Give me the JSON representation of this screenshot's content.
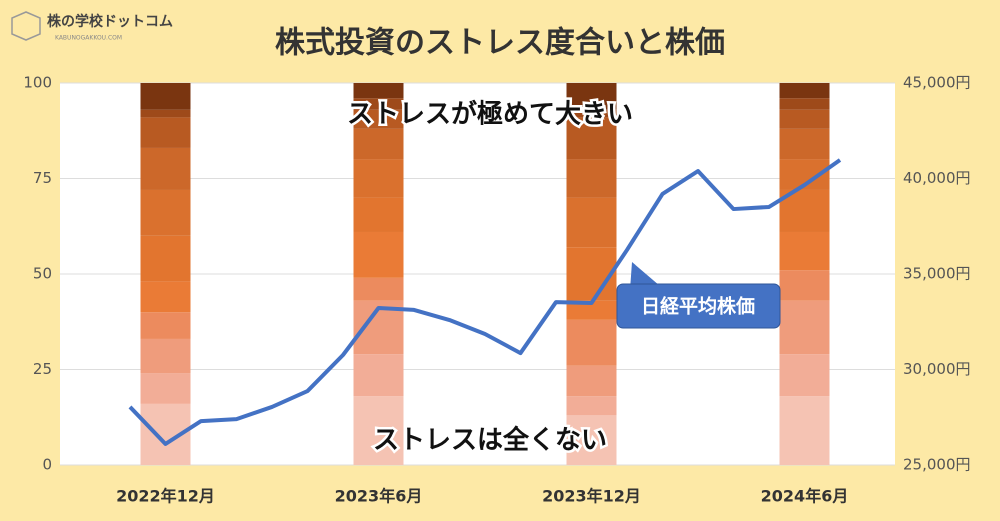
{
  "logo": {
    "name": "株の学校ドットコム",
    "url": "KABUNOGAKKOU.COM"
  },
  "chart_data": {
    "type": "bar_line",
    "title": "株式投資のストレス度合いと株価",
    "categories": [
      null,
      "2022年12月",
      null,
      null,
      null,
      null,
      null,
      "2023年6月",
      null,
      null,
      null,
      null,
      null,
      "2023年12月",
      null,
      null,
      null,
      null,
      null,
      "2024年6月",
      null
    ],
    "ylim": [
      0,
      100
    ],
    "yticks": [
      0,
      25,
      50,
      75,
      100
    ],
    "y2lim": [
      25000,
      45000
    ],
    "y2ticks": [
      {
        "value": 25000,
        "label": "25,000円"
      },
      {
        "value": 30000,
        "label": "30,000円"
      },
      {
        "value": 35000,
        "label": "35,000円"
      },
      {
        "value": 40000,
        "label": "40,000円"
      },
      {
        "value": 45000,
        "label": "45,000円"
      }
    ],
    "grid": true,
    "stack_series": [
      {
        "color": "#f5c3b3",
        "values": [
          null,
          16,
          null,
          null,
          null,
          null,
          null,
          18,
          null,
          null,
          null,
          null,
          null,
          13,
          null,
          null,
          null,
          null,
          null,
          18,
          null
        ]
      },
      {
        "color": "#f2ad97",
        "values": [
          null,
          8,
          null,
          null,
          null,
          null,
          null,
          11,
          null,
          null,
          null,
          null,
          null,
          5,
          null,
          null,
          null,
          null,
          null,
          11,
          null
        ]
      },
      {
        "color": "#ef9c7c",
        "values": [
          null,
          9,
          null,
          null,
          null,
          null,
          null,
          14,
          null,
          null,
          null,
          null,
          null,
          8,
          null,
          null,
          null,
          null,
          null,
          14,
          null
        ]
      },
      {
        "color": "#ec8b5e",
        "values": [
          null,
          7,
          null,
          null,
          null,
          null,
          null,
          6,
          null,
          null,
          null,
          null,
          null,
          12,
          null,
          null,
          null,
          null,
          null,
          8,
          null
        ]
      },
      {
        "color": "#ea7b36",
        "values": [
          null,
          8,
          null,
          null,
          null,
          null,
          null,
          12,
          null,
          null,
          null,
          null,
          null,
          5,
          null,
          null,
          null,
          null,
          null,
          10,
          null
        ]
      },
      {
        "color": "#e2752f",
        "values": [
          null,
          12,
          null,
          null,
          null,
          null,
          null,
          9,
          null,
          null,
          null,
          null,
          null,
          14,
          null,
          null,
          null,
          null,
          null,
          11,
          null
        ]
      },
      {
        "color": "#da712e",
        "values": [
          null,
          12,
          null,
          null,
          null,
          null,
          null,
          10,
          null,
          null,
          null,
          null,
          null,
          13,
          null,
          null,
          null,
          null,
          null,
          8,
          null
        ]
      },
      {
        "color": "#cc682a",
        "values": [
          null,
          11,
          null,
          null,
          null,
          null,
          null,
          8,
          null,
          null,
          null,
          null,
          null,
          10,
          null,
          null,
          null,
          null,
          null,
          8,
          null
        ]
      },
      {
        "color": "#b85a22",
        "values": [
          null,
          8,
          null,
          null,
          null,
          null,
          null,
          5,
          null,
          null,
          null,
          null,
          null,
          11,
          null,
          null,
          null,
          null,
          null,
          5,
          null
        ]
      },
      {
        "color": "#9e4a1a",
        "values": [
          null,
          2,
          null,
          null,
          null,
          null,
          null,
          3,
          null,
          null,
          null,
          null,
          null,
          2,
          null,
          null,
          null,
          null,
          null,
          3,
          null
        ]
      },
      {
        "color": "#7a3510",
        "values": [
          null,
          7,
          null,
          null,
          null,
          null,
          null,
          4,
          null,
          null,
          null,
          null,
          null,
          7,
          null,
          null,
          null,
          null,
          null,
          4,
          null
        ]
      }
    ],
    "series": [
      {
        "name": "日経平均株価",
        "color": "#4472c4",
        "axis": "y2",
        "values": [
          28040,
          26100,
          27300,
          27400,
          28040,
          28870,
          30760,
          33220,
          33120,
          32590,
          31860,
          30860,
          33530,
          33480,
          36260,
          39190,
          40390,
          38400,
          38510,
          39660,
          40970
        ]
      }
    ],
    "annotations": [
      "ストレスが極めて大きい",
      "ストレスは全くない"
    ]
  }
}
